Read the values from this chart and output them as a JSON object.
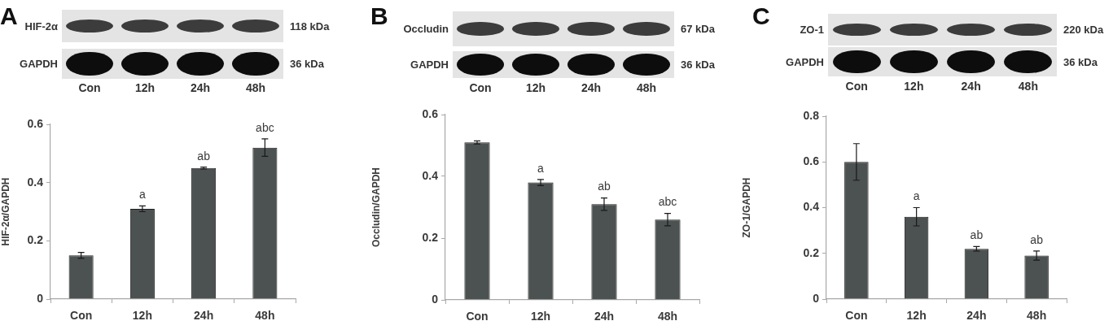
{
  "chart_data": [
    {
      "type": "bar",
      "title": "A",
      "ylabel": "HIF-2α/GAPDH",
      "categories": [
        "Con",
        "12h",
        "24h",
        "48h"
      ],
      "values": [
        0.15,
        0.31,
        0.45,
        0.52
      ],
      "errors": [
        0.01,
        0.01,
        0.003,
        0.03
      ],
      "value_labels": [
        null,
        "a",
        "ab",
        "abc"
      ],
      "color": "#4c5151",
      "ylim": [
        0,
        0.6
      ],
      "yticks": [
        0,
        0.2,
        0.4,
        0.6
      ],
      "annotations": [
        "HIF-2α",
        "118 kDa",
        "GAPDH",
        "36 kDa"
      ]
    },
    {
      "type": "bar",
      "title": "B",
      "ylabel": "Occludin/GAPDH",
      "categories": [
        "Con",
        "12h",
        "24h",
        "48h"
      ],
      "values": [
        0.51,
        0.38,
        0.31,
        0.26
      ],
      "errors": [
        0.005,
        0.01,
        0.02,
        0.02
      ],
      "value_labels": [
        null,
        "a",
        "ab",
        "abc"
      ],
      "color": "#4c5151",
      "ylim": [
        0,
        0.6
      ],
      "yticks": [
        0,
        0.2,
        0.4,
        0.6
      ],
      "annotations": [
        "Occludin",
        "67 kDa",
        "GAPDH",
        "36 kDa"
      ]
    },
    {
      "type": "bar",
      "title": "C",
      "ylabel": "ZO-1/GAPDH",
      "categories": [
        "Con",
        "12h",
        "24h",
        "48h"
      ],
      "values": [
        0.6,
        0.36,
        0.22,
        0.19
      ],
      "errors": [
        0.08,
        0.04,
        0.01,
        0.02
      ],
      "value_labels": [
        null,
        "a",
        "ab",
        "ab"
      ],
      "color": "#4c5151",
      "ylim": [
        0,
        0.8
      ],
      "yticks": [
        0,
        0.2,
        0.4,
        0.6,
        0.8
      ],
      "annotations": [
        "ZO-1",
        "220 kDa",
        "GAPDH",
        "36 kDa"
      ]
    }
  ]
}
